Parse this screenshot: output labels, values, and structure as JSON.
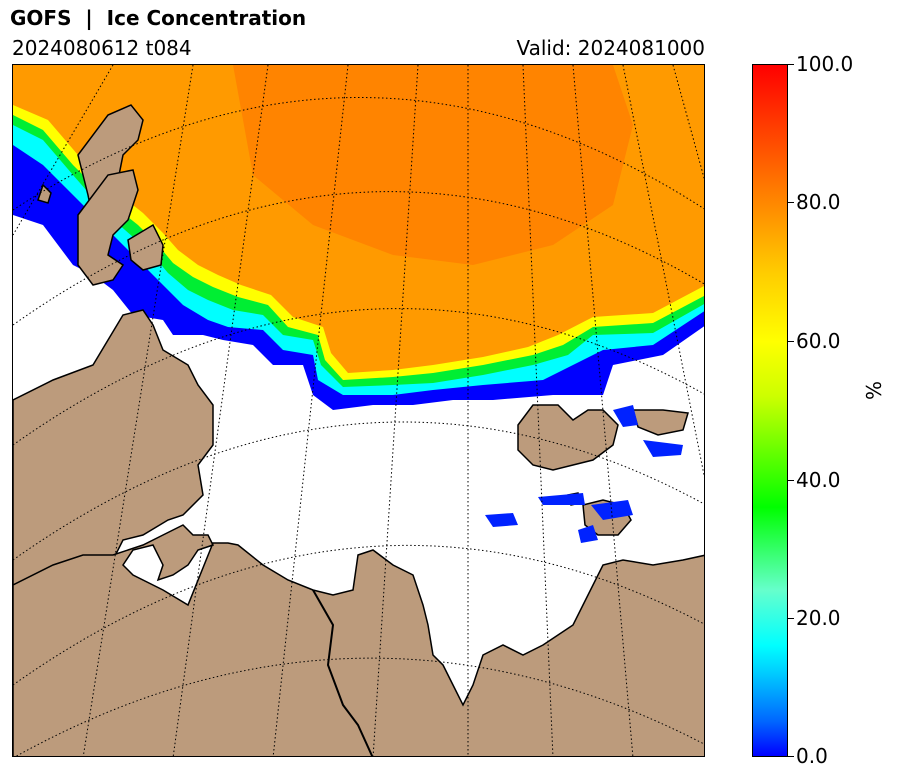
{
  "header": {
    "title": "GOFS  |  Ice Concentration",
    "run": "2024080612 t084",
    "valid": "Valid: 2024081000"
  },
  "colorbar": {
    "unit": "%",
    "range": [
      0,
      100
    ],
    "ticks": [
      "100.0",
      "80.0",
      "60.0",
      "40.0",
      "20.0",
      "0.0"
    ],
    "colors": [
      "#0000ff",
      "#00ffff",
      "#00ff00",
      "#ffff00",
      "#ff8800",
      "#ff0000"
    ]
  },
  "map": {
    "land_color": "#bc9b7c",
    "ocean_color": "#ffffff",
    "graticule": "dotted"
  }
}
